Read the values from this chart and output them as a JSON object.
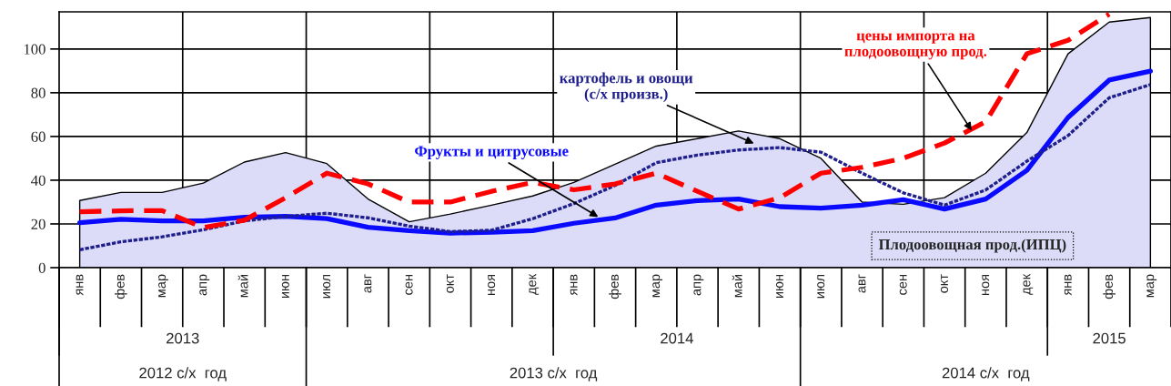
{
  "chart_data": {
    "type": "line",
    "categories": [
      "янв",
      "фев",
      "мар",
      "апр",
      "май",
      "июн",
      "июл",
      "авг",
      "сен",
      "окт",
      "ноя",
      "дек",
      "янв",
      "фев",
      "мар",
      "апр",
      "май",
      "июн",
      "июл",
      "авг",
      "сен",
      "окт",
      "ноя",
      "дек",
      "янв",
      "фев",
      "мар"
    ],
    "ylim": [
      0,
      117
    ],
    "yticks": [
      0,
      20,
      40,
      60,
      80,
      100
    ],
    "grid": true,
    "marker": "none",
    "annotations": [
      "2013",
      "2014",
      "2015",
      "2012 с/х  год",
      "2013 с/х  год",
      "2014 с/х  год"
    ],
    "series": [
      {
        "name": "Плодоовощная прод.(ИПЦ)",
        "type": "area",
        "color": "#dcdcf8",
        "values": [
          30.7,
          34.4,
          34.4,
          38.7,
          48.3,
          52.6,
          47.6,
          31.4,
          21,
          24.5,
          28.6,
          32.8,
          39,
          47.3,
          55.6,
          59,
          62.5,
          59,
          50,
          30,
          29,
          32,
          43.2,
          61.8,
          97.8,
          112.3,
          114.4
        ]
      },
      {
        "name": "Фрукты и цитрусовые",
        "color": "#0a0aff",
        "line_style": "solid",
        "values": [
          20.6,
          22.1,
          21.4,
          21.4,
          23.1,
          23.5,
          22.4,
          18.5,
          16.9,
          15.8,
          16.2,
          16.9,
          20.3,
          22.7,
          28.6,
          30.7,
          31.4,
          27.9,
          27.2,
          28.6,
          31.1,
          26.8,
          31.4,
          44.5,
          68.7,
          85.8,
          89.9
        ]
      },
      {
        "name": "картофель и овощи\n(с/х произв.)",
        "color": "#1e1e8c",
        "line_style": "dotted",
        "values": [
          8.2,
          11.8,
          14.1,
          17.3,
          21.4,
          23.4,
          24.9,
          22.8,
          19,
          16.5,
          17.1,
          22.4,
          29.3,
          37.6,
          48,
          51.5,
          53.8,
          54.9,
          52.8,
          43.2,
          34.2,
          28.6,
          35.5,
          48.7,
          60.4,
          77.7,
          83.7
        ]
      },
      {
        "name": "цены импорта на\nплодоовощную прод.",
        "color": "#ff0000",
        "line_style": "dashed",
        "values": [
          25.6,
          26,
          26.1,
          18.3,
          21.7,
          32,
          43.2,
          38.3,
          30,
          30,
          34.9,
          39,
          35.6,
          38.3,
          43.2,
          34.9,
          26.8,
          32,
          43.2,
          45.9,
          50,
          57,
          66.7,
          97.8,
          104,
          116,
          null
        ]
      }
    ]
  }
}
